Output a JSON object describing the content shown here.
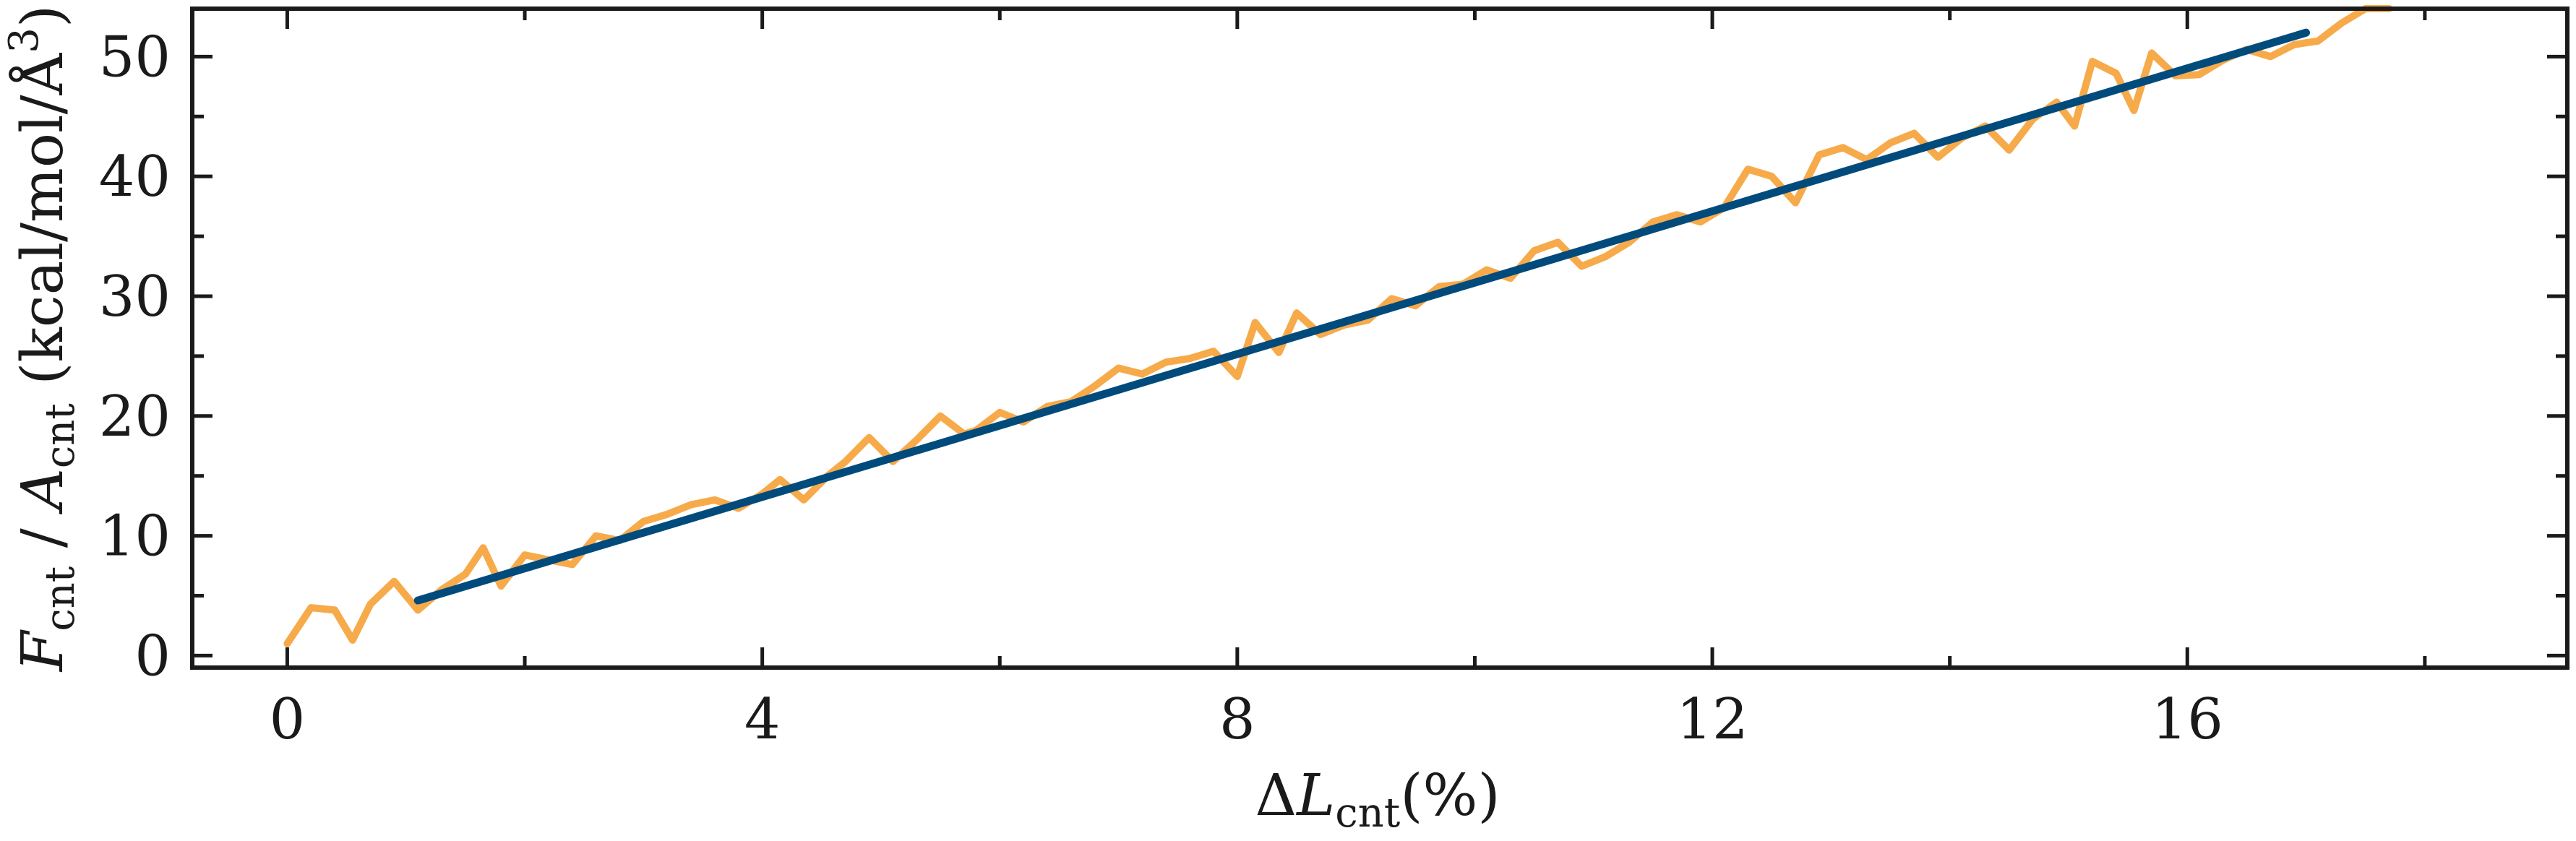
{
  "chart_data": {
    "type": "line",
    "xlabel": {
      "prefix": "Δ",
      "var": "L",
      "sub": "cnt",
      "suffix": "(%)"
    },
    "ylabel": {
      "var1": "F",
      "sub1": "cnt",
      "sep": " / ",
      "var2": "A",
      "sub2": "cnt",
      "units": " (kcal/mol/Å",
      "sup": "3",
      "close": ")"
    },
    "xlim": [
      -0.8,
      19.2
    ],
    "ylim": [
      -1,
      54
    ],
    "x_ticks": [
      0,
      4,
      8,
      12,
      16
    ],
    "x_tick_labels": [
      "0",
      "4",
      "8",
      "12",
      "16"
    ],
    "x_minor_ticks": [
      2,
      6,
      10,
      14,
      18
    ],
    "y_ticks": [
      0,
      10,
      20,
      30,
      40,
      50
    ],
    "y_tick_labels": [
      "0",
      "10",
      "20",
      "30",
      "40",
      "50"
    ],
    "y_minor_ticks": [
      5,
      15,
      25,
      35,
      45
    ],
    "grid": false,
    "series": [
      {
        "color": "#F7AA4A",
        "style": "data",
        "x": [
          0,
          0.2,
          0.4,
          0.55,
          0.7,
          0.9,
          1.1,
          1.3,
          1.5,
          1.65,
          1.8,
          2.0,
          2.2,
          2.4,
          2.6,
          2.8,
          3.0,
          3.2,
          3.4,
          3.6,
          3.8,
          4.0,
          4.15,
          4.35,
          4.55,
          4.7,
          4.9,
          5.1,
          5.3,
          5.5,
          5.7,
          5.8,
          6.0,
          6.2,
          6.4,
          6.6,
          6.8,
          7.0,
          7.2,
          7.4,
          7.6,
          7.8,
          8.0,
          8.15,
          8.35,
          8.5,
          8.7,
          8.9,
          9.1,
          9.3,
          9.5,
          9.7,
          9.9,
          10.1,
          10.3,
          10.5,
          10.7,
          10.9,
          11.1,
          11.3,
          11.5,
          11.7,
          11.9,
          12.1,
          12.3,
          12.5,
          12.7,
          12.9,
          13.1,
          13.3,
          13.5,
          13.7,
          13.9,
          14.1,
          14.3,
          14.5,
          14.7,
          14.9,
          15.05,
          15.2,
          15.4,
          15.55,
          15.7,
          15.9,
          16.1,
          16.3,
          16.5,
          16.7,
          16.9,
          17.1,
          17.3,
          17.5,
          17.7
        ],
        "y": [
          1,
          4,
          3.8,
          1.3,
          4.3,
          6.2,
          3.8,
          5.5,
          6.8,
          9,
          5.8,
          8.4,
          8,
          7.6,
          10,
          9.6,
          11.2,
          11.8,
          12.6,
          13,
          12.3,
          13.5,
          14.7,
          13,
          15,
          16.2,
          18.2,
          16.2,
          18,
          20,
          18.5,
          18.8,
          20.3,
          19.5,
          20.8,
          21.2,
          22.5,
          24,
          23.5,
          24.5,
          24.8,
          25.4,
          23.3,
          27.8,
          25.3,
          28.6,
          26.8,
          27.6,
          28,
          29.8,
          29.2,
          30.8,
          31,
          32.2,
          31.5,
          33.8,
          34.5,
          32.5,
          33.3,
          34.5,
          36.2,
          36.8,
          36.2,
          37.4,
          40.6,
          40,
          37.8,
          41.8,
          42.4,
          41.4,
          42.8,
          43.6,
          41.6,
          43.2,
          44.2,
          42.2,
          44.8,
          46.2,
          44.2,
          49.6,
          48.6,
          45.5,
          50.3,
          48.4,
          48.5,
          49.7,
          50.6,
          50,
          51,
          51.3,
          52.8,
          54,
          54
        ]
      },
      {
        "color": "#004B7C",
        "style": "fit",
        "x": [
          1.1,
          17.0
        ],
        "y": [
          4.6,
          52.0
        ]
      }
    ]
  }
}
